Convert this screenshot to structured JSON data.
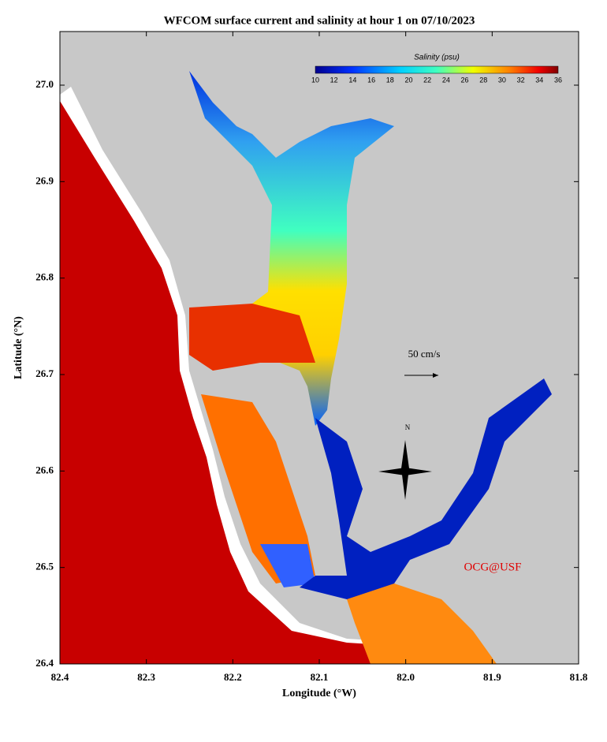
{
  "title": "WFCOM surface current and salinity at hour 1 on 07/10/2023",
  "x_axis": {
    "label": "Longitude (°W)",
    "ticks": [
      "82.4",
      "82.3",
      "82.2",
      "82.1",
      "82.0",
      "81.9",
      "81.8"
    ]
  },
  "y_axis": {
    "label": "Latitude (°N)",
    "ticks": [
      "27.0",
      "26.9",
      "26.8",
      "26.7",
      "26.6",
      "26.5",
      "26.4"
    ]
  },
  "colorbar": {
    "label": "Salinity (psu)",
    "ticks": [
      "10",
      "12",
      "14",
      "16",
      "18",
      "20",
      "22",
      "24",
      "26",
      "28",
      "30",
      "32",
      "34",
      "36"
    ]
  },
  "scale_label": "50 cm/s",
  "compass": "N",
  "credit": "OCG@USF"
}
